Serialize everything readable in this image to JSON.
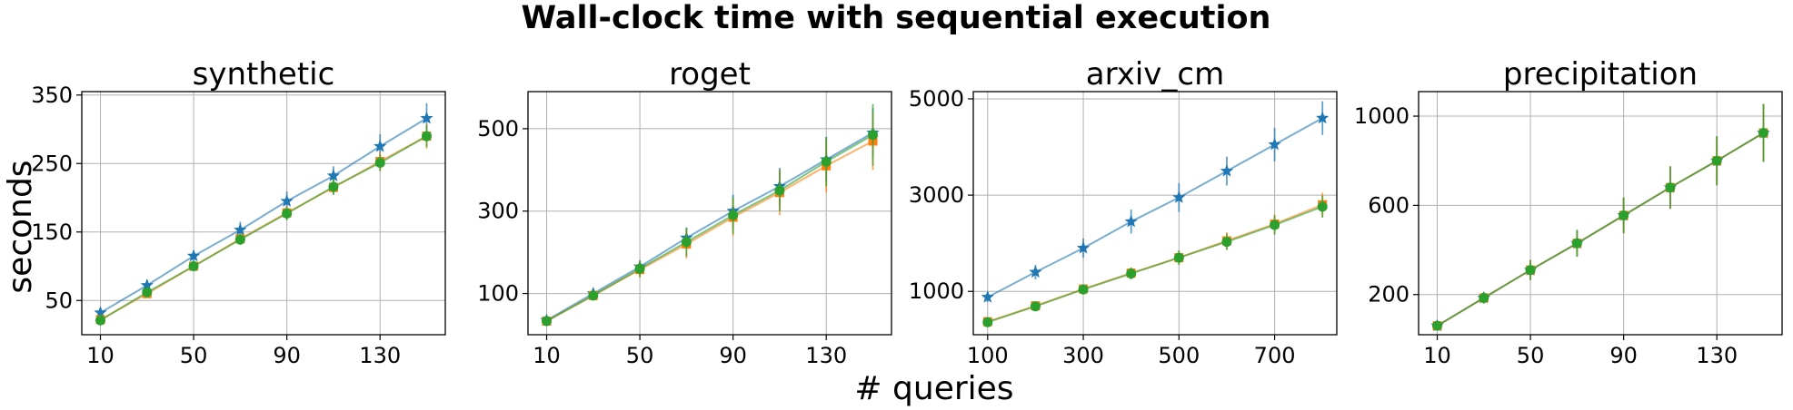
{
  "figure": {
    "title": "Wall-clock time with sequential execution",
    "xlabel": "# queries",
    "ylabel": "seconds"
  },
  "colors": {
    "series1": "#1f77b4",
    "series2": "#ff7f0e",
    "series3": "#2ca02c",
    "grid": "#b0b0b0"
  },
  "chart_data": [
    {
      "type": "line",
      "title": "synthetic",
      "grid": true,
      "xlim": [
        2,
        158
      ],
      "ylim": [
        0,
        355
      ],
      "xticks": [
        10,
        50,
        90,
        130
      ],
      "yticks": [
        50,
        150,
        250,
        350
      ],
      "x": [
        10,
        30,
        50,
        70,
        90,
        110,
        130,
        150
      ],
      "series": [
        {
          "marker": "star",
          "values": [
            32,
            72,
            115,
            153,
            195,
            232,
            275,
            316
          ],
          "errors": [
            6,
            8,
            8,
            12,
            14,
            14,
            18,
            22
          ]
        },
        {
          "marker": "square",
          "values": [
            22,
            60,
            100,
            140,
            178,
            215,
            253,
            290
          ],
          "errors": [
            4,
            6,
            6,
            8,
            10,
            10,
            14,
            18
          ]
        },
        {
          "marker": "circle",
          "values": [
            21,
            62,
            100,
            139,
            177,
            216,
            251,
            290
          ],
          "errors": [
            4,
            6,
            6,
            8,
            10,
            12,
            12,
            16
          ]
        }
      ]
    },
    {
      "type": "line",
      "title": "roget",
      "grid": true,
      "xlim": [
        2,
        158
      ],
      "ylim": [
        0,
        590
      ],
      "xticks": [
        10,
        50,
        90,
        130
      ],
      "yticks": [
        100,
        300,
        500
      ],
      "x": [
        10,
        30,
        50,
        70,
        90,
        110,
        130,
        150
      ],
      "series": [
        {
          "marker": "star",
          "values": [
            35,
            100,
            165,
            235,
            300,
            360,
            425,
            490
          ],
          "errors": [
            5,
            10,
            15,
            25,
            40,
            45,
            55,
            60
          ]
        },
        {
          "marker": "square",
          "values": [
            33,
            95,
            158,
            220,
            285,
            345,
            410,
            470
          ],
          "errors": [
            5,
            10,
            20,
            35,
            45,
            55,
            65,
            70
          ]
        },
        {
          "marker": "circle",
          "values": [
            33,
            95,
            160,
            225,
            290,
            350,
            420,
            485
          ],
          "errors": [
            5,
            10,
            20,
            35,
            45,
            50,
            60,
            75
          ]
        }
      ]
    },
    {
      "type": "line",
      "title": "arxiv_cm",
      "grid": true,
      "xlim": [
        70,
        830
      ],
      "ylim": [
        100,
        5150
      ],
      "xticks": [
        100,
        300,
        500,
        700
      ],
      "yticks": [
        1000,
        3000,
        5000
      ],
      "x": [
        100,
        200,
        300,
        400,
        500,
        600,
        700,
        800
      ],
      "series": [
        {
          "marker": "star",
          "values": [
            880,
            1400,
            1900,
            2450,
            2950,
            3500,
            4050,
            4600
          ],
          "errors": [
            100,
            150,
            200,
            250,
            300,
            300,
            350,
            350
          ]
        },
        {
          "marker": "square",
          "values": [
            370,
            700,
            1050,
            1380,
            1700,
            2050,
            2400,
            2800
          ],
          "errors": [
            60,
            80,
            100,
            120,
            150,
            180,
            200,
            250
          ]
        },
        {
          "marker": "circle",
          "values": [
            360,
            690,
            1040,
            1370,
            1700,
            2030,
            2380,
            2760
          ],
          "errors": [
            60,
            80,
            100,
            120,
            150,
            170,
            200,
            230
          ]
        }
      ]
    },
    {
      "type": "line",
      "title": "precipitation",
      "grid": true,
      "xlim": [
        2,
        158
      ],
      "ylim": [
        20,
        1110
      ],
      "xticks": [
        10,
        50,
        90,
        130
      ],
      "yticks": [
        200,
        600,
        1000
      ],
      "x": [
        10,
        30,
        50,
        70,
        90,
        110,
        130,
        150
      ],
      "series": [
        {
          "marker": "star",
          "values": [
            60,
            185,
            310,
            430,
            555,
            680,
            800,
            925
          ],
          "errors": [
            15,
            25,
            45,
            60,
            80,
            95,
            110,
            130
          ]
        },
        {
          "marker": "square",
          "values": [
            60,
            185,
            310,
            430,
            555,
            680,
            800,
            925
          ],
          "errors": [
            15,
            25,
            45,
            60,
            80,
            95,
            110,
            130
          ]
        },
        {
          "marker": "circle",
          "values": [
            60,
            185,
            310,
            430,
            555,
            680,
            800,
            925
          ],
          "errors": [
            15,
            25,
            45,
            60,
            80,
            95,
            110,
            130
          ]
        }
      ]
    }
  ]
}
